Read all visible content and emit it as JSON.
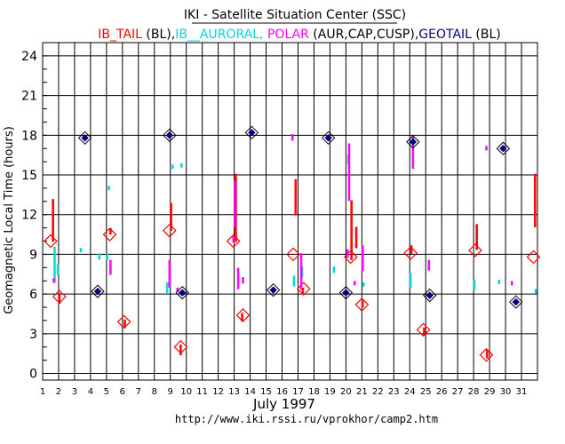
{
  "colors": {
    "ib_tail": "#ff0000",
    "ib_auroral": "#00d8d8",
    "polar": "#ff00ff",
    "geotail": "#000080",
    "text": "#000000"
  },
  "title": "IKI - Satellite Situation Center (SSC)",
  "legend": [
    {
      "text": "IB_TAIL",
      "color": "#ff0000"
    },
    {
      "text": " (BL),",
      "color": "#000000"
    },
    {
      "text": "IB__AURORAL,",
      "color": "#00d8d8"
    },
    {
      "text": " POLAR",
      "color": "#ff00ff"
    },
    {
      "text": " (AUR,CAP,CUSP),",
      "color": "#000000"
    },
    {
      "text": "GEOTAIL",
      "color": "#000080"
    },
    {
      "text": " (BL)",
      "color": "#000000"
    }
  ],
  "footer_url": "http://www.iki.rssi.ru/vprokhor/camp2.htm",
  "chart_data": {
    "type": "scatter",
    "ylabel": "Geomagnetic  Local Time  (hours)",
    "xlabel": "July    1997",
    "xlim": [
      1,
      32
    ],
    "ylim": [
      -0.5,
      25
    ],
    "yticks": [
      0,
      3,
      6,
      9,
      12,
      15,
      18,
      21,
      24
    ],
    "xticks": [
      1,
      2,
      3,
      4,
      5,
      6,
      7,
      8,
      9,
      10,
      11,
      12,
      13,
      14,
      15,
      16,
      17,
      18,
      19,
      20,
      21,
      22,
      23,
      24,
      25,
      26,
      27,
      28,
      29,
      30,
      31
    ],
    "grid": true,
    "series": [
      {
        "name": "IB_TAIL",
        "marker": "dots",
        "segments": [
          {
            "x": 1.65,
            "y1": 10.0,
            "y2": 13.1
          },
          {
            "x": 2.05,
            "y1": 5.3,
            "y2": 6.0
          },
          {
            "x": 5.25,
            "y1": 10.5,
            "y2": 10.9
          },
          {
            "x": 6.15,
            "y1": 3.4,
            "y2": 4.0
          },
          {
            "x": 9.05,
            "y1": 10.8,
            "y2": 12.8
          },
          {
            "x": 9.65,
            "y1": 1.4,
            "y2": 2.1
          },
          {
            "x": 13.1,
            "y1": 10.0,
            "y2": 15.0
          },
          {
            "x": 13.5,
            "y1": 4.0,
            "y2": 4.5
          },
          {
            "x": 16.85,
            "y1": 12.0,
            "y2": 14.6
          },
          {
            "x": 17.3,
            "y1": 6.0,
            "y2": 6.4
          },
          {
            "x": 20.35,
            "y1": 8.5,
            "y2": 13.0
          },
          {
            "x": 20.65,
            "y1": 9.5,
            "y2": 11.0
          },
          {
            "x": 21.05,
            "y1": 5.0,
            "y2": 5.4
          },
          {
            "x": 24.1,
            "y1": 9.0,
            "y2": 9.6
          },
          {
            "x": 24.9,
            "y1": 2.8,
            "y2": 3.4
          },
          {
            "x": 28.2,
            "y1": 9.4,
            "y2": 11.2
          },
          {
            "x": 28.85,
            "y1": 1.2,
            "y2": 1.7
          },
          {
            "x": 31.85,
            "y1": 11.0,
            "y2": 15.0
          }
        ],
        "diamonds": [
          {
            "x": 1.5,
            "y": 10.0
          },
          {
            "x": 2.05,
            "y": 5.8
          },
          {
            "x": 5.2,
            "y": 10.5
          },
          {
            "x": 6.1,
            "y": 3.9
          },
          {
            "x": 8.95,
            "y": 10.8
          },
          {
            "x": 9.65,
            "y": 2.0
          },
          {
            "x": 12.95,
            "y": 10.0
          },
          {
            "x": 13.55,
            "y": 4.4
          },
          {
            "x": 16.7,
            "y": 9.0
          },
          {
            "x": 17.35,
            "y": 6.4
          },
          {
            "x": 20.3,
            "y": 8.8
          },
          {
            "x": 21.0,
            "y": 5.2
          },
          {
            "x": 24.05,
            "y": 9.1
          },
          {
            "x": 24.85,
            "y": 3.3
          },
          {
            "x": 28.1,
            "y": 9.3
          },
          {
            "x": 28.8,
            "y": 1.4
          },
          {
            "x": 31.75,
            "y": 8.8
          }
        ]
      },
      {
        "name": "IB__AURORAL",
        "marker": "dots",
        "segments": [
          {
            "x": 1.75,
            "y1": 6.8,
            "y2": 9.5
          },
          {
            "x": 1.95,
            "y1": 7.4,
            "y2": 8.2
          },
          {
            "x": 3.4,
            "y1": 9.1,
            "y2": 9.4
          },
          {
            "x": 4.55,
            "y1": 8.6,
            "y2": 9.0
          },
          {
            "x": 5.05,
            "y1": 8.6,
            "y2": 9.0
          },
          {
            "x": 5.15,
            "y1": 13.9,
            "y2": 14.1
          },
          {
            "x": 8.8,
            "y1": 6.0,
            "y2": 6.8
          },
          {
            "x": 9.15,
            "y1": 15.5,
            "y2": 15.7
          },
          {
            "x": 9.7,
            "y1": 15.6,
            "y2": 15.8
          },
          {
            "x": 16.75,
            "y1": 6.6,
            "y2": 7.3
          },
          {
            "x": 17.25,
            "y1": 7.3,
            "y2": 8.0
          },
          {
            "x": 19.25,
            "y1": 7.6,
            "y2": 8.0
          },
          {
            "x": 20.15,
            "y1": 15.8,
            "y2": 16.4
          },
          {
            "x": 21.1,
            "y1": 6.6,
            "y2": 6.8
          },
          {
            "x": 24.05,
            "y1": 6.5,
            "y2": 7.5
          },
          {
            "x": 28.05,
            "y1": 6.3,
            "y2": 7.0
          },
          {
            "x": 29.6,
            "y1": 6.8,
            "y2": 7.0
          },
          {
            "x": 31.9,
            "y1": 6.0,
            "y2": 6.3
          }
        ],
        "diamonds": []
      },
      {
        "name": "POLAR",
        "marker": "dots",
        "segments": [
          {
            "x": 1.7,
            "y1": 6.8,
            "y2": 7.1
          },
          {
            "x": 5.25,
            "y1": 7.5,
            "y2": 8.5
          },
          {
            "x": 8.95,
            "y1": 6.5,
            "y2": 8.5
          },
          {
            "x": 9.45,
            "y1": 6.1,
            "y2": 6.4
          },
          {
            "x": 12.95,
            "y1": 9.9,
            "y2": 10.3
          },
          {
            "x": 13.05,
            "y1": 11.0,
            "y2": 14.5
          },
          {
            "x": 13.25,
            "y1": 6.3,
            "y2": 7.9
          },
          {
            "x": 13.55,
            "y1": 6.8,
            "y2": 7.2
          },
          {
            "x": 16.65,
            "y1": 17.6,
            "y2": 18.0
          },
          {
            "x": 17.2,
            "y1": 6.3,
            "y2": 9.0
          },
          {
            "x": 20.1,
            "y1": 8.8,
            "y2": 9.3
          },
          {
            "x": 20.2,
            "y1": 13.0,
            "y2": 17.3
          },
          {
            "x": 20.55,
            "y1": 6.6,
            "y2": 6.9
          },
          {
            "x": 21.05,
            "y1": 7.8,
            "y2": 9.6
          },
          {
            "x": 24.2,
            "y1": 15.5,
            "y2": 17.8
          },
          {
            "x": 25.2,
            "y1": 7.8,
            "y2": 8.5
          },
          {
            "x": 28.8,
            "y1": 16.9,
            "y2": 17.1
          },
          {
            "x": 30.4,
            "y1": 6.6,
            "y2": 6.9
          }
        ],
        "diamonds": []
      },
      {
        "name": "GEOTAIL",
        "marker": "diamond",
        "segments": [],
        "diamonds": [
          {
            "x": 3.65,
            "y": 17.8
          },
          {
            "x": 4.45,
            "y": 6.2
          },
          {
            "x": 8.95,
            "y": 18.0
          },
          {
            "x": 9.75,
            "y": 6.1
          },
          {
            "x": 14.1,
            "y": 18.2
          },
          {
            "x": 15.45,
            "y": 6.3
          },
          {
            "x": 18.9,
            "y": 17.8
          },
          {
            "x": 20.0,
            "y": 6.1
          },
          {
            "x": 24.2,
            "y": 17.5
          },
          {
            "x": 25.25,
            "y": 5.9
          },
          {
            "x": 29.85,
            "y": 17.0
          },
          {
            "x": 30.65,
            "y": 5.4
          }
        ]
      }
    ]
  }
}
